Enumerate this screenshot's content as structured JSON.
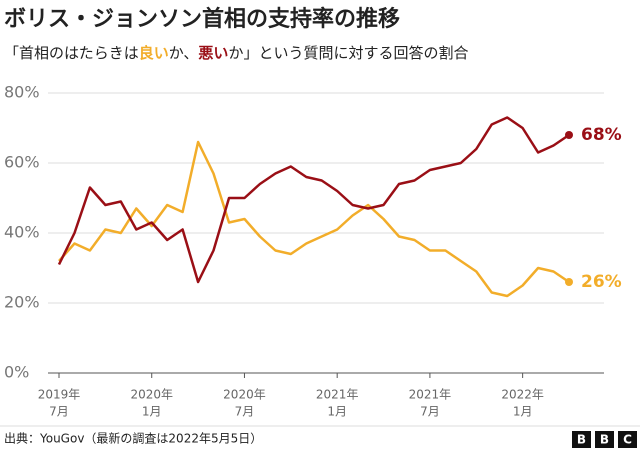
{
  "chart_data": {
    "type": "line",
    "title": "ボリス・ジョンソン首相の支持率の推移",
    "subtitle": [
      "「首相のはたらきは",
      "良い",
      "か、",
      "悪い",
      "か」という質問に対する回答の割合"
    ],
    "x": [
      "2019-07",
      "2019-08",
      "2019-09",
      "2019-10",
      "2019-11",
      "2019-12",
      "2020-01",
      "2020-02",
      "2020-03",
      "2020-04",
      "2020-05",
      "2020-06",
      "2020-07",
      "2020-08",
      "2020-09",
      "2020-10",
      "2020-11",
      "2020-12",
      "2021-01",
      "2021-02",
      "2021-03",
      "2021-04",
      "2021-05",
      "2021-06",
      "2021-07",
      "2021-08",
      "2021-09",
      "2021-10",
      "2021-11",
      "2021-12",
      "2022-01",
      "2022-02",
      "2022-03",
      "2022-04"
    ],
    "series": [
      {
        "name": "良い",
        "color": "#f2ad2a",
        "values": [
          32,
          37,
          35,
          41,
          40,
          47,
          42,
          48,
          46,
          66,
          57,
          43,
          44,
          39,
          35,
          34,
          37,
          39,
          41,
          45,
          48,
          44,
          39,
          38,
          35,
          35,
          32,
          29,
          23,
          22,
          25,
          30,
          29,
          26
        ],
        "value_labels": [
          null,
          null,
          null,
          null,
          null,
          null,
          null,
          null,
          null,
          null,
          null,
          null,
          null,
          null,
          null,
          null,
          null,
          null,
          null,
          null,
          null,
          null,
          null,
          null,
          null,
          null,
          null,
          null,
          null,
          null,
          null,
          null,
          null,
          "26%"
        ]
      },
      {
        "name": "悪い",
        "color": "#9a0f16",
        "values": [
          31,
          40,
          53,
          48,
          49,
          41,
          43,
          38,
          41,
          26,
          35,
          50,
          50,
          54,
          57,
          59,
          56,
          55,
          52,
          48,
          47,
          48,
          54,
          55,
          58,
          59,
          60,
          64,
          71,
          73,
          70,
          63,
          65,
          68
        ],
        "value_labels": [
          null,
          null,
          null,
          null,
          null,
          null,
          null,
          null,
          null,
          null,
          null,
          null,
          null,
          null,
          null,
          null,
          null,
          null,
          null,
          null,
          null,
          null,
          null,
          null,
          null,
          null,
          null,
          null,
          null,
          null,
          null,
          null,
          null,
          "68%"
        ]
      }
    ],
    "xlim": [
      "2019-07",
      "2022-04"
    ],
    "xticks": [
      {
        "value": "2019-07",
        "label": [
          "2019年",
          "7月"
        ]
      },
      {
        "value": "2020-01",
        "label": [
          "2020年",
          "1月"
        ]
      },
      {
        "value": "2020-07",
        "label": [
          "2020年",
          "7月"
        ]
      },
      {
        "value": "2021-01",
        "label": [
          "2021年",
          "1月"
        ]
      },
      {
        "value": "2021-07",
        "label": [
          "2021年",
          "7月"
        ]
      },
      {
        "value": "2022-01",
        "label": [
          "2022年",
          "1月"
        ]
      }
    ],
    "ylim": [
      0,
      80
    ],
    "yticks": [
      {
        "value": 0,
        "label": "0%"
      },
      {
        "value": 20,
        "label": "20%"
      },
      {
        "value": 40,
        "label": "40%"
      },
      {
        "value": 60,
        "label": "60%"
      },
      {
        "value": 80,
        "label": "80%"
      }
    ],
    "grid": true,
    "source": "出典：YouGov（最新の調査は2022年5月5日）",
    "logo": [
      "B",
      "B",
      "C"
    ]
  }
}
